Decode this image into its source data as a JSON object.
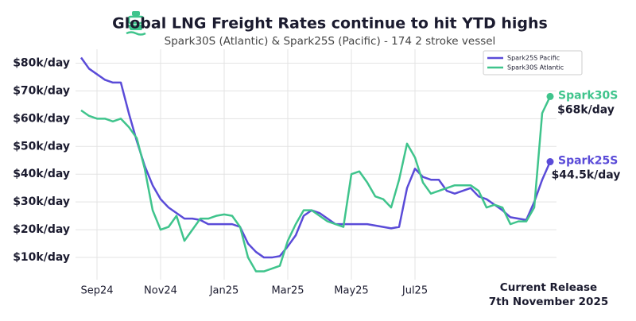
{
  "chart_data": {
    "type": "line",
    "title": "Global LNG Freight Rates continue to hit YTD highs",
    "subtitle": "Spark30S (Atlantic) & Spark25S (Pacific) - 174 2 stroke vessel",
    "categories": [
      null,
      null,
      "Sep24",
      null,
      null,
      null,
      null,
      null,
      null,
      null,
      "Nov24",
      null,
      null,
      null,
      null,
      null,
      null,
      null,
      "Jan25",
      null,
      null,
      null,
      null,
      null,
      null,
      null,
      "Mar25",
      null,
      null,
      null,
      null,
      null,
      null,
      null,
      "May25",
      null,
      null,
      null,
      null,
      null,
      null,
      null,
      "Jul25",
      null,
      null,
      null,
      null,
      null,
      null,
      null,
      null,
      null,
      null,
      null,
      null,
      null,
      null,
      null,
      null,
      null
    ],
    "release_label": [
      "Current Release",
      "7th November 2025"
    ],
    "series": [
      {
        "name": "Spark25S Pacific",
        "color": "#5a4bd8",
        "values": [
          82,
          78,
          76,
          74,
          73,
          73,
          62,
          52,
          43,
          36,
          31,
          28,
          26,
          24,
          24,
          23.5,
          22,
          22,
          22,
          22,
          21,
          15,
          12,
          10,
          10,
          10.5,
          14,
          18,
          25,
          27,
          26,
          24,
          22,
          22,
          22,
          22,
          22,
          21.5,
          21,
          20.5,
          21,
          35,
          42,
          39,
          38,
          38,
          34,
          33,
          34,
          35,
          32,
          31,
          29,
          27,
          24.5,
          24,
          23.5,
          30,
          38,
          44.5
        ]
      },
      {
        "name": "Spark30S Atlantic",
        "color": "#3fc48c",
        "values": [
          63,
          61,
          60,
          60,
          59,
          60,
          57,
          53,
          42,
          27,
          20,
          21,
          25,
          16,
          20,
          24,
          24,
          25,
          25.5,
          25,
          21,
          10,
          5,
          5,
          6,
          7,
          16,
          22,
          27,
          27,
          25,
          23,
          22,
          21,
          40,
          41,
          37,
          32,
          31,
          28,
          38,
          51,
          46,
          37,
          33,
          34,
          35,
          36,
          36,
          36,
          34,
          28,
          29,
          28,
          22,
          23,
          23,
          28,
          62,
          68
        ]
      }
    ],
    "annotations": [
      {
        "series": 1,
        "title": "Spark30S",
        "text": "$68k/day"
      },
      {
        "series": 0,
        "title": "Spark25S",
        "text": "$44.5k/day"
      }
    ],
    "ylim": [
      2,
      85
    ],
    "yticks": [
      {
        "value": 10,
        "label": "$10k/day"
      },
      {
        "value": 20,
        "label": "$20k/day"
      },
      {
        "value": 30,
        "label": "$30k/day"
      },
      {
        "value": 40,
        "label": "$40k/day"
      },
      {
        "value": 50,
        "label": "$50k/day"
      },
      {
        "value": 60,
        "label": "$60k/day"
      },
      {
        "value": 70,
        "label": "$70k/day"
      },
      {
        "value": 80,
        "label": "$80k/day"
      }
    ],
    "grid": true,
    "legend": "upper right"
  }
}
